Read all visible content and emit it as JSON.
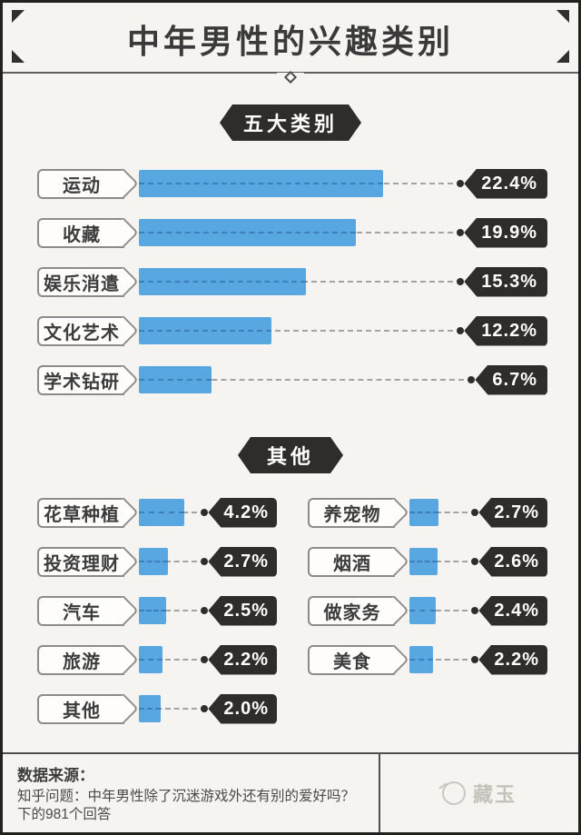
{
  "page": {
    "title": "中年男性的兴趣类别",
    "footer": {
      "source_label": "数据来源：",
      "source_line1": "知乎问题：中年男性除了沉迷游戏外还有别的爱好吗？",
      "source_line2": "下的981个回答",
      "watermark": "藏玉"
    }
  },
  "colors": {
    "background": "#f6f4f0",
    "bar_blue": "#59a7e0",
    "tag_black": "#2e2d2a"
  },
  "chart_data": {
    "type": "bar",
    "orientation": "horizontal",
    "title": "中年男性的兴趣类别",
    "unit": "%",
    "badge_main": "五大类别",
    "badge_other": "其他",
    "main": [
      {
        "label": "运动",
        "value": "22.4"
      },
      {
        "label": "收藏",
        "value": "19.9"
      },
      {
        "label": "娱乐消遣",
        "value": "15.3"
      },
      {
        "label": "文化艺术",
        "value": "12.2"
      },
      {
        "label": "学术钻研",
        "value": "6.7"
      }
    ],
    "other_left": [
      {
        "label": "花草种植",
        "value": "4.2"
      },
      {
        "label": "投资理财",
        "value": "2.7"
      },
      {
        "label": "汽车",
        "value": "2.5"
      },
      {
        "label": "旅游",
        "value": "2.2"
      },
      {
        "label": "其他",
        "value": "2.0"
      }
    ],
    "other_right": [
      {
        "label": "养宠物",
        "value": "2.7"
      },
      {
        "label": "烟酒",
        "value": "2.6"
      },
      {
        "label": "做家务",
        "value": "2.4"
      },
      {
        "label": "美食",
        "value": "2.2"
      }
    ]
  }
}
